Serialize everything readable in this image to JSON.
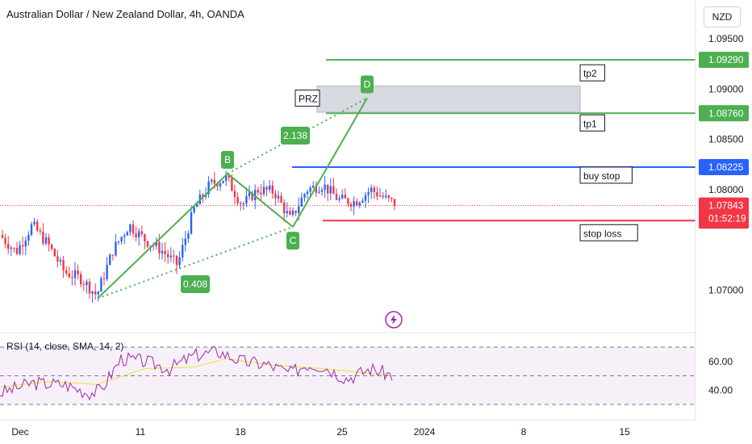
{
  "header": {
    "title": "Australian Dollar / New Zealand Dollar, 4h, OANDA",
    "currency": "NZD"
  },
  "colors": {
    "green": "#4caf50",
    "blue": "#2962ff",
    "red": "#f23645",
    "candle_up": "#2962ff",
    "candle_down": "#f23645",
    "rsi_line": "#9c27b0",
    "rsi_ma": "#e6e65a"
  },
  "chart_data": {
    "type": "candlestick",
    "y_axis": {
      "ticks": [
        "1.09500",
        "1.09000",
        "1.08500",
        "1.08000",
        "1.07000"
      ]
    },
    "x_axis": {
      "ticks": [
        "Dec",
        "11",
        "18",
        "25",
        "2024",
        "8",
        "15"
      ]
    },
    "price_levels": [
      {
        "name": "tp2",
        "value": 1.0929,
        "label": "1.09290",
        "color": "#4caf50"
      },
      {
        "name": "tp1",
        "value": 1.0876,
        "label": "1.08760",
        "color": "#4caf50"
      },
      {
        "name": "buy stop",
        "value": 1.08225,
        "label": "1.08225",
        "color": "#2962ff"
      },
      {
        "name": "stop loss",
        "value": 1.07693,
        "label": "1.07693",
        "color": "#f23645"
      }
    ],
    "current_price": {
      "value": 1.07843,
      "label": "1.07843",
      "countdown": "01:52:19"
    },
    "pattern": {
      "points": [
        {
          "name": "X",
          "value": 1.0692,
          "label": ""
        },
        {
          "name": "B",
          "value": 1.0816,
          "label": "B"
        },
        {
          "name": "C",
          "value": 1.0763,
          "label": "C"
        },
        {
          "name": "D",
          "value": 1.0891,
          "label": "D"
        }
      ],
      "ratios": [
        "0.408",
        "2.138"
      ],
      "prz_label": "PRZ",
      "prz_range": [
        1.0877,
        1.0903
      ]
    },
    "rsi": {
      "label": "RSI (14, close, SMA, 14, 2)",
      "ticks": [
        "60.00",
        "40.00"
      ],
      "bands": [
        70,
        50,
        30
      ]
    }
  }
}
